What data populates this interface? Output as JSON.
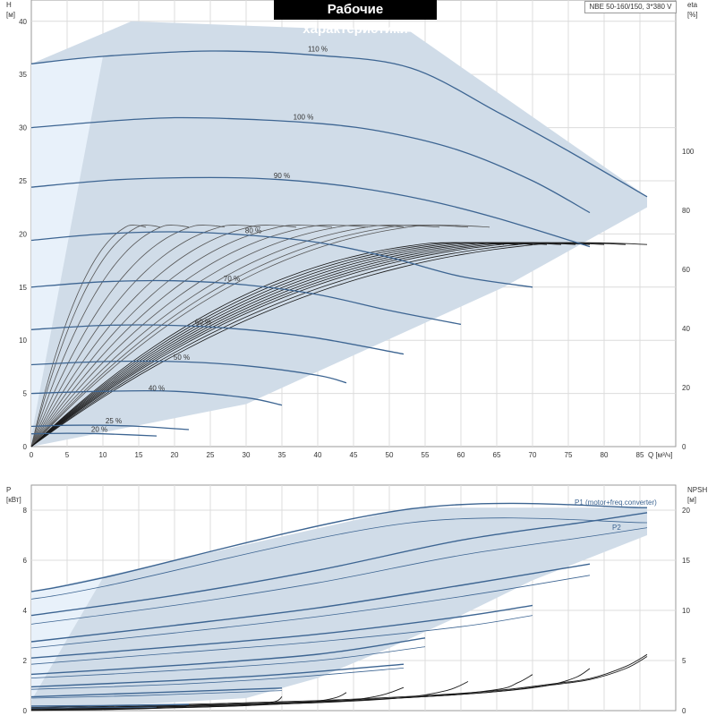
{
  "header": {
    "title": "Рабочие характеристики",
    "model": "NBE 50-160/150, 3*380 V"
  },
  "colors": {
    "region_fill": "#d0dce8",
    "region_light": "#e8f1fa",
    "curve_blue": "#3d6592",
    "curve_black": "#1a1a1a",
    "grid": "#dcdcdc"
  },
  "chart_data": [
    {
      "type": "line",
      "panel": "head-efficiency",
      "title": "Рабочие характеристики",
      "xlabel": "Q [м³/ч]",
      "ylabel": "H\n[м]",
      "y2label": "eta\n[%]",
      "xlim": [
        0,
        90
      ],
      "ylim": [
        0,
        42
      ],
      "y2lim": [
        0,
        151.2
      ],
      "x_ticks": [
        0,
        5,
        10,
        15,
        20,
        25,
        30,
        35,
        40,
        45,
        50,
        55,
        60,
        65,
        70,
        75,
        80,
        85
      ],
      "y_ticks": [
        0,
        5,
        10,
        15,
        20,
        25,
        30,
        35,
        40
      ],
      "y2_ticks": [
        0,
        20,
        40,
        60,
        80,
        100
      ],
      "grid": true,
      "operating_region": [
        [
          0,
          0
        ],
        [
          0,
          36
        ],
        [
          14,
          40
        ],
        [
          53,
          39
        ],
        [
          86,
          23.5
        ],
        [
          86,
          22.5
        ],
        [
          66,
          15
        ],
        [
          30,
          4
        ],
        [
          0,
          0
        ]
      ],
      "head_curves": [
        {
          "name": "110 %",
          "x": [
            0,
            10,
            25,
            40,
            53,
            65,
            75,
            86
          ],
          "y": [
            36.0,
            36.7,
            37.2,
            36.8,
            35.6,
            31.5,
            27.8,
            23.5
          ],
          "label_at": [
            40,
            37.0
          ]
        },
        {
          "name": "100 %",
          "x": [
            0,
            15,
            25,
            40,
            50,
            60,
            70,
            78
          ],
          "y": [
            30.0,
            30.8,
            30.9,
            30.4,
            29.5,
            27.8,
            25.0,
            22.0
          ],
          "label_at": [
            38,
            30.6
          ]
        },
        {
          "name": "90 %",
          "x": [
            0,
            12,
            25,
            35,
            45,
            55,
            65,
            78
          ],
          "y": [
            24.4,
            25.1,
            25.3,
            25.1,
            24.4,
            23.2,
            21.5,
            18.8
          ],
          "label_at": [
            35,
            25.1
          ]
        },
        {
          "name": "80 %",
          "x": [
            0,
            10,
            20,
            30,
            40,
            50,
            60,
            70
          ],
          "y": [
            19.4,
            20.0,
            20.2,
            19.9,
            19.2,
            17.8,
            16.0,
            15.0
          ],
          "label_at": [
            31,
            19.9
          ]
        },
        {
          "name": "70 %",
          "x": [
            0,
            10,
            20,
            30,
            40,
            50,
            60
          ],
          "y": [
            15.0,
            15.5,
            15.6,
            15.2,
            14.3,
            12.8,
            11.5
          ],
          "label_at": [
            28,
            15.4
          ]
        },
        {
          "name": "60 %",
          "x": [
            0,
            10,
            20,
            30,
            40,
            52
          ],
          "y": [
            11.0,
            11.4,
            11.4,
            11.0,
            10.2,
            8.7
          ],
          "label_at": [
            24,
            11.3
          ]
        },
        {
          "name": "50 %",
          "x": [
            0,
            10,
            20,
            30,
            40,
            44
          ],
          "y": [
            7.7,
            8.0,
            8.0,
            7.6,
            6.7,
            6.0
          ],
          "label_at": [
            21,
            8.0
          ]
        },
        {
          "name": "40 %",
          "x": [
            0,
            10,
            20,
            30,
            35
          ],
          "y": [
            5.0,
            5.2,
            5.2,
            4.6,
            3.9
          ],
          "label_at": [
            17.5,
            5.1
          ]
        },
        {
          "name": "25 %",
          "x": [
            0,
            5,
            10,
            15,
            22
          ],
          "y": [
            1.9,
            2.0,
            2.0,
            1.9,
            1.6
          ],
          "label_at": [
            11.5,
            2.0
          ]
        },
        {
          "name": "20 %",
          "x": [
            0,
            5,
            10,
            17.5
          ],
          "y": [
            1.2,
            1.25,
            1.2,
            1.0
          ],
          "label_at": [
            9.5,
            1.2
          ]
        }
      ],
      "efficiency_curves_end_x": [
        16,
        18,
        22,
        27,
        32,
        37,
        42,
        47,
        52,
        57,
        61,
        64,
        66,
        68,
        70,
        72,
        74,
        76,
        78,
        80,
        83,
        86
      ],
      "efficiency_curves_peak": [
        76,
        76,
        76,
        76,
        76,
        76,
        76,
        76,
        76,
        76,
        76,
        76,
        70,
        70,
        70,
        70,
        70,
        70,
        70,
        70,
        70,
        70
      ]
    },
    {
      "type": "line",
      "panel": "power-npsh",
      "xlabel": "",
      "ylabel": "P\n[кВт]",
      "y2label": "NPSH\n[м]",
      "xlim": [
        0,
        90
      ],
      "ylim": [
        0,
        9
      ],
      "y2lim": [
        0,
        22.5
      ],
      "x_ticks": [
        0,
        5,
        10,
        15,
        20,
        25,
        30,
        35,
        40,
        45,
        50,
        55,
        60,
        65,
        70,
        75,
        80,
        85
      ],
      "y_ticks": [
        0,
        2,
        4,
        6,
        8
      ],
      "y2_ticks": [
        0,
        5,
        10,
        15,
        20
      ],
      "grid": true,
      "operating_region": [
        [
          0,
          0
        ],
        [
          0,
          4.75
        ],
        [
          10,
          5.35
        ],
        [
          53,
          8.1
        ],
        [
          86,
          8.1
        ],
        [
          86,
          7.0
        ],
        [
          70,
          5.2
        ],
        [
          60,
          3.8
        ],
        [
          50,
          2.5
        ],
        [
          40,
          1.3
        ],
        [
          30,
          0.5
        ],
        [
          0,
          0
        ]
      ],
      "power_curves": [
        {
          "name": "P1 (motor+freq.converter)",
          "x": [
            0,
            10,
            53,
            86
          ],
          "y": [
            4.75,
            5.3,
            8.05,
            8.1
          ]
        },
        {
          "name": "P2",
          "x": [
            0,
            10,
            53,
            86
          ],
          "y": [
            4.45,
            4.95,
            7.5,
            7.5
          ]
        },
        {
          "x": [
            0,
            20,
            40,
            60,
            78,
            86
          ],
          "y": [
            3.8,
            4.6,
            5.6,
            6.8,
            7.55,
            7.9
          ]
        },
        {
          "x": [
            0,
            20,
            40,
            60,
            78,
            86
          ],
          "y": [
            3.45,
            4.2,
            5.1,
            6.2,
            6.95,
            7.3
          ]
        },
        {
          "x": [
            0,
            20,
            40,
            60,
            78
          ],
          "y": [
            2.75,
            3.4,
            4.1,
            5.0,
            5.85
          ]
        },
        {
          "x": [
            0,
            20,
            40,
            60,
            78
          ],
          "y": [
            2.5,
            3.1,
            3.75,
            4.55,
            5.4
          ]
        },
        {
          "x": [
            0,
            20,
            40,
            60,
            70
          ],
          "y": [
            2.1,
            2.55,
            3.05,
            3.75,
            4.2
          ]
        },
        {
          "x": [
            0,
            20,
            40,
            60,
            70
          ],
          "y": [
            1.85,
            2.3,
            2.75,
            3.35,
            3.8
          ]
        },
        {
          "x": [
            0,
            20,
            40,
            55
          ],
          "y": [
            1.45,
            1.8,
            2.25,
            2.9
          ]
        },
        {
          "x": [
            0,
            20,
            40,
            55
          ],
          "y": [
            1.3,
            1.6,
            2.0,
            2.55
          ]
        },
        {
          "x": [
            0,
            20,
            35,
            52
          ],
          "y": [
            0.95,
            1.2,
            1.45,
            1.85
          ]
        },
        {
          "x": [
            0,
            20,
            35,
            52
          ],
          "y": [
            0.85,
            1.05,
            1.3,
            1.7
          ]
        },
        {
          "x": [
            0,
            15,
            30,
            35
          ],
          "y": [
            0.55,
            0.7,
            0.85,
            0.9
          ]
        },
        {
          "x": [
            0,
            15,
            30,
            35
          ],
          "y": [
            0.5,
            0.6,
            0.75,
            0.8
          ]
        },
        {
          "x": [
            0,
            10,
            22
          ],
          "y": [
            0.18,
            0.2,
            0.25
          ]
        },
        {
          "x": [
            0,
            10,
            17.5
          ],
          "y": [
            0.1,
            0.12,
            0.14
          ]
        }
      ],
      "npsh_curves": [
        {
          "x": [
            0,
            20,
            40,
            55,
            65,
            72,
            78,
            83,
            86
          ],
          "y": [
            0.3,
            0.6,
            1.0,
            1.5,
            2.0,
            2.6,
            3.2,
            4.4,
            5.6
          ]
        },
        {
          "x": [
            0,
            20,
            40,
            55,
            65,
            72,
            78,
            83,
            86
          ],
          "y": [
            0.2,
            0.5,
            0.9,
            1.4,
            1.9,
            2.5,
            3.1,
            4.2,
            5.4
          ]
        },
        {
          "x": [
            0,
            20,
            40,
            55,
            65,
            72,
            76,
            78
          ],
          "y": [
            0.2,
            0.5,
            0.9,
            1.4,
            1.9,
            2.5,
            3.3,
            4.2
          ]
        },
        {
          "x": [
            0,
            20,
            40,
            55,
            65,
            68,
            70
          ],
          "y": [
            0.2,
            0.5,
            0.9,
            1.4,
            2.1,
            2.8,
            3.6
          ]
        },
        {
          "x": [
            0,
            20,
            40,
            52,
            58,
            61
          ],
          "y": [
            0.1,
            0.4,
            0.8,
            1.3,
            2.0,
            2.9
          ]
        },
        {
          "x": [
            0,
            20,
            40,
            48,
            52
          ],
          "y": [
            0.1,
            0.4,
            0.8,
            1.4,
            2.3
          ]
        },
        {
          "x": [
            0,
            20,
            36,
            42,
            44
          ],
          "y": [
            0.1,
            0.3,
            0.7,
            1.2,
            1.8
          ]
        },
        {
          "x": [
            0,
            15,
            30,
            34,
            35
          ],
          "y": [
            0.05,
            0.2,
            0.5,
            0.9,
            1.4
          ]
        },
        {
          "x": [
            0,
            10,
            20,
            22
          ],
          "y": [
            0.02,
            0.1,
            0.3,
            0.5
          ]
        }
      ],
      "curve_labels": {
        "p1": "P1 (motor+freq.converter)",
        "p2": "P2"
      }
    }
  ]
}
